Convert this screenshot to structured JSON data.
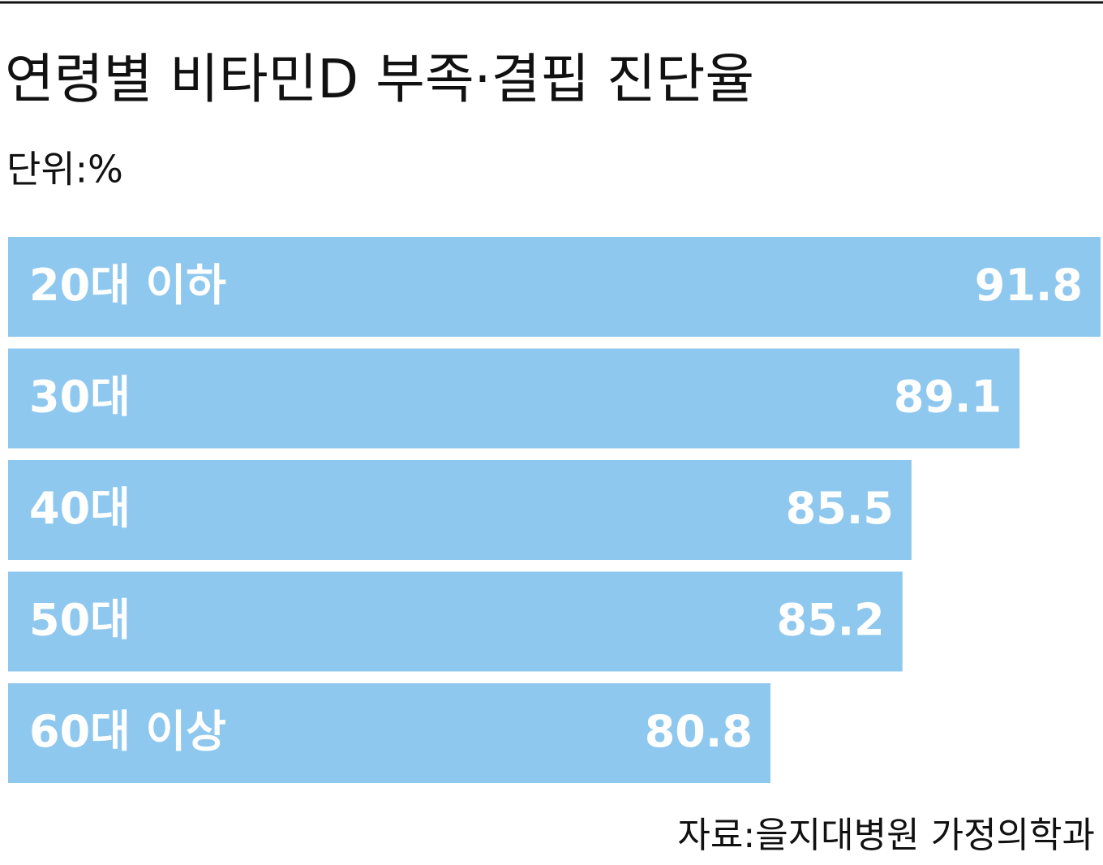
{
  "chart_data": {
    "type": "hbar",
    "title": "연령별 비타민D 부족·결핍 진단율",
    "subtitle": "단위:%",
    "source": "자료:을지대병원 가정의학과",
    "categories": [
      "20대 이하",
      "30대",
      "40대",
      "50대",
      "60대 이상"
    ],
    "values": [
      91.8,
      89.1,
      85.5,
      85.2,
      80.8
    ],
    "color": "#8fc8ee",
    "xlim": [
      55.4,
      91.8
    ]
  }
}
